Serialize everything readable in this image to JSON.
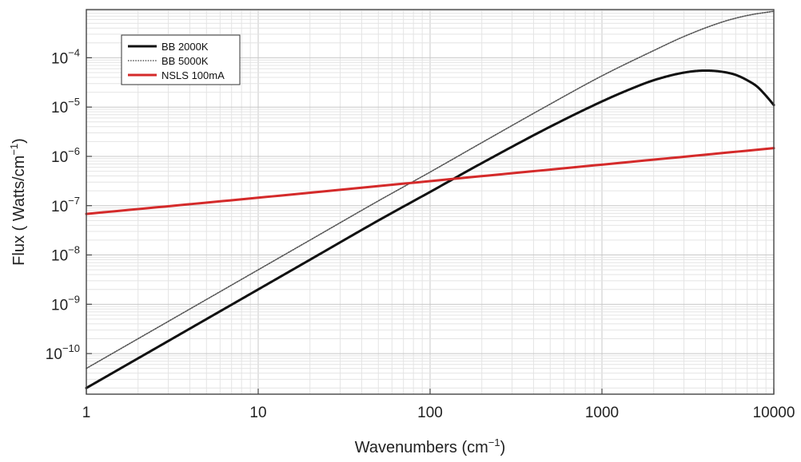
{
  "chart_data": {
    "type": "line",
    "title": "",
    "xlabel": "Wavenumbers (cm",
    "xlabel_sup": "−1",
    "xlabel_tail": ")",
    "ylabel": "Flux ( Watts/cm",
    "ylabel_sup": "−1",
    "ylabel_tail": ")",
    "x_scale": "log",
    "y_scale": "log",
    "xlim": [
      1,
      10000
    ],
    "ylim": [
      1.5e-11,
      0.00095
    ],
    "grid": true,
    "legend_position": "top-left",
    "x_ticks": [
      {
        "value": 1,
        "label": "1"
      },
      {
        "value": 10,
        "label": "10"
      },
      {
        "value": 100,
        "label": "100"
      },
      {
        "value": 1000,
        "label": "1000"
      },
      {
        "value": 10000,
        "label": "10000"
      }
    ],
    "y_ticks": [
      {
        "value": 1e-10,
        "base": "10",
        "exp": "−10"
      },
      {
        "value": 1e-09,
        "base": "10",
        "exp": "−9"
      },
      {
        "value": 1e-08,
        "base": "10",
        "exp": "−8"
      },
      {
        "value": 1e-07,
        "base": "10",
        "exp": "−7"
      },
      {
        "value": 1e-06,
        "base": "10",
        "exp": "−6"
      },
      {
        "value": 1e-05,
        "base": "10",
        "exp": "−5"
      },
      {
        "value": 0.0001,
        "base": "10",
        "exp": "−4"
      }
    ],
    "series": [
      {
        "name": "BB 2000K",
        "color": "#111111",
        "style": "solid",
        "x": [
          1,
          2,
          5,
          10,
          20,
          50,
          100,
          200,
          500,
          1000,
          1500,
          2000,
          3000,
          4000,
          5000,
          6000,
          7000,
          8000,
          9000,
          10000
        ],
        "y": [
          2e-11,
          8e-11,
          5e-10,
          2e-09,
          8e-09,
          5e-08,
          1.9e-07,
          7.3e-07,
          4e-06,
          1.3e-05,
          2.4e-05,
          3.5e-05,
          5e-05,
          5.5e-05,
          5.2e-05,
          4.5e-05,
          3.5e-05,
          2.6e-05,
          1.7e-05,
          1.1e-05
        ]
      },
      {
        "name": "BB 5000K",
        "color": "#555555",
        "style": "dotted",
        "x": [
          1,
          2,
          5,
          10,
          20,
          50,
          100,
          200,
          500,
          1000,
          2000,
          3000,
          5000,
          7000,
          10000
        ],
        "y": [
          5e-11,
          2e-10,
          1.25e-09,
          5e-09,
          2e-08,
          1.25e-07,
          4.8e-07,
          1.9e-06,
          1.15e-05,
          4.3e-05,
          0.00014,
          0.00027,
          0.00053,
          0.00072,
          0.00088
        ]
      },
      {
        "name": "NSLS 100mA",
        "color": "#d42a2a",
        "style": "solid",
        "x": [
          1,
          10,
          100,
          1000,
          10000
        ],
        "y": [
          6.8e-08,
          1.45e-07,
          3.15e-07,
          6.8e-07,
          1.47e-06
        ]
      }
    ]
  }
}
